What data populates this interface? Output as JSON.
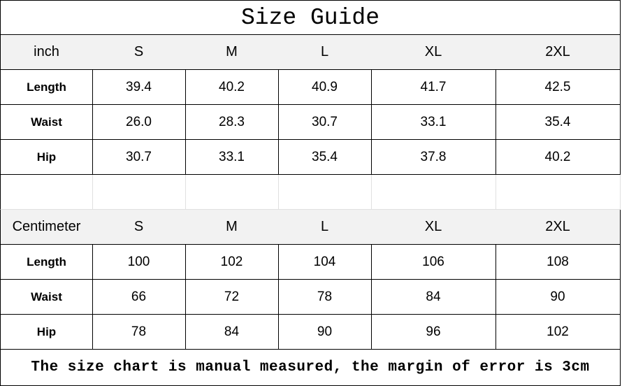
{
  "title": "Size Guide",
  "footer_note": "The size chart is manual measured, the margin of error is 3cm",
  "colors": {
    "header_bg": "#f2f2f2",
    "border": "#000000"
  },
  "inch_table": {
    "unit": "inch",
    "sizes": [
      "S",
      "M",
      "L",
      "XL",
      "2XL"
    ],
    "rows": [
      {
        "label": "Length",
        "values": [
          "39.4",
          "40.2",
          "40.9",
          "41.7",
          "42.5"
        ]
      },
      {
        "label": "Waist",
        "values": [
          "26.0",
          "28.3",
          "30.7",
          "33.1",
          "35.4"
        ]
      },
      {
        "label": "Hip",
        "values": [
          "30.7",
          "33.1",
          "35.4",
          "37.8",
          "40.2"
        ]
      }
    ]
  },
  "cm_table": {
    "unit": "Centimeter",
    "sizes": [
      "S",
      "M",
      "L",
      "XL",
      "2XL"
    ],
    "rows": [
      {
        "label": "Length",
        "values": [
          "100",
          "102",
          "104",
          "106",
          "108"
        ]
      },
      {
        "label": "Waist",
        "values": [
          "66",
          "72",
          "78",
          "84",
          "90"
        ]
      },
      {
        "label": "Hip",
        "values": [
          "78",
          "84",
          "90",
          "96",
          "102"
        ]
      }
    ]
  }
}
